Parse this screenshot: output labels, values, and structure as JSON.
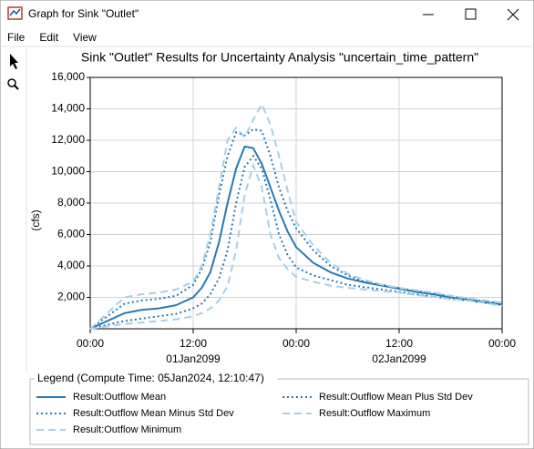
{
  "window": {
    "title": "Graph for Sink \"Outlet\"",
    "menu": [
      "File",
      "Edit",
      "View"
    ]
  },
  "chart_data": {
    "type": "line",
    "title": "Sink \"Outlet\" Results for Uncertainty Analysis \"uncertain_time_pattern\"",
    "y_label": "(cfs)",
    "legend_title": "Legend (Compute Time: 05Jan2024, 12:10:47)",
    "x": [
      "01Jan2099 00:00",
      "01Jan2099 02:00",
      "01Jan2099 04:00",
      "01Jan2099 06:00",
      "01Jan2099 08:00",
      "01Jan2099 10:00",
      "01Jan2099 12:00",
      "01Jan2099 13:00",
      "01Jan2099 14:00",
      "01Jan2099 15:00",
      "01Jan2099 16:00",
      "01Jan2099 17:00",
      "01Jan2099 18:00",
      "01Jan2099 19:00",
      "01Jan2099 20:00",
      "01Jan2099 21:00",
      "01Jan2099 22:00",
      "01Jan2099 23:00",
      "02Jan2099 00:00",
      "02Jan2099 02:00",
      "02Jan2099 04:00",
      "02Jan2099 06:00",
      "02Jan2099 08:00",
      "02Jan2099 10:00",
      "02Jan2099 12:00",
      "02Jan2099 14:00",
      "02Jan2099 16:00",
      "02Jan2099 18:00",
      "02Jan2099 20:00",
      "02Jan2099 22:00",
      "03Jan2099 00:00"
    ],
    "xlim": [
      "01Jan2099 00:00",
      "03Jan2099 00:00"
    ],
    "xticks": [
      {
        "value": "01Jan2099 00:00",
        "label": "00:00"
      },
      {
        "value": "01Jan2099 12:00",
        "label": "12:00"
      },
      {
        "value": "02Jan2099 00:00",
        "label": "00:00"
      },
      {
        "value": "02Jan2099 12:00",
        "label": "12:00"
      },
      {
        "value": "03Jan2099 00:00",
        "label": "00:00"
      }
    ],
    "x_dates": [
      "01Jan2099",
      "02Jan2099"
    ],
    "ylim": [
      0,
      16000
    ],
    "yticks": [
      {
        "value": 2000,
        "label": "2,000"
      },
      {
        "value": 4000,
        "label": "4,000"
      },
      {
        "value": 6000,
        "label": "6,000"
      },
      {
        "value": 8000,
        "label": "8,000"
      },
      {
        "value": 10000,
        "label": "10,000"
      },
      {
        "value": 12000,
        "label": "12,000"
      },
      {
        "value": 14000,
        "label": "14,000"
      },
      {
        "value": 16000,
        "label": "16,000"
      }
    ],
    "grid": true,
    "series": [
      {
        "name": "Result:Outflow Mean",
        "color": "#2878b4",
        "dash": "solid",
        "values": [
          0,
          500,
          1000,
          1200,
          1300,
          1500,
          2000,
          2600,
          3600,
          5500,
          8000,
          10200,
          11600,
          11500,
          10500,
          9000,
          7500,
          6200,
          5200,
          4200,
          3600,
          3200,
          2950,
          2750,
          2550,
          2350,
          2200,
          2000,
          1850,
          1700,
          1550
        ]
      },
      {
        "name": "Result:Outflow Mean Plus Std Dev",
        "color": "#2878b4",
        "dash": "dotted",
        "values": [
          0,
          800,
          1600,
          1800,
          1900,
          2100,
          2800,
          3800,
          5500,
          8500,
          11000,
          12500,
          12300,
          12700,
          12600,
          11000,
          9000,
          7500,
          6400,
          5000,
          4000,
          3400,
          3000,
          2800,
          2600,
          2400,
          2250,
          2050,
          1900,
          1750,
          1600
        ]
      },
      {
        "name": "Result:Outflow Mean Minus Std Dev",
        "color": "#2878b4",
        "dash": "dotted",
        "values": [
          0,
          250,
          500,
          650,
          800,
          950,
          1300,
          1600,
          2200,
          3200,
          5000,
          8000,
          10300,
          11000,
          10200,
          8200,
          6000,
          4700,
          3900,
          3400,
          3100,
          2800,
          2650,
          2500,
          2350,
          2200,
          2050,
          1900,
          1800,
          1650,
          1500
        ]
      },
      {
        "name": "Result:Outflow Maximum",
        "color": "#a8cfe6",
        "dash": "dashed",
        "values": [
          0,
          1000,
          2000,
          2200,
          2300,
          2500,
          3000,
          4000,
          6000,
          9000,
          12000,
          12800,
          12200,
          13300,
          14300,
          13000,
          11000,
          8800,
          6800,
          5300,
          4200,
          3500,
          3100,
          2800,
          2600,
          2450,
          2300,
          2100,
          1950,
          1800,
          1650
        ]
      },
      {
        "name": "Result:Outflow Minimum",
        "color": "#a8cfe6",
        "dash": "dashed",
        "values": [
          0,
          150,
          300,
          400,
          500,
          600,
          800,
          1000,
          1300,
          1800,
          2700,
          5000,
          8500,
          10400,
          9000,
          6000,
          4500,
          3800,
          3300,
          3000,
          2750,
          2600,
          2500,
          2400,
          2300,
          2150,
          2050,
          1900,
          1800,
          1650,
          1450
        ]
      }
    ]
  }
}
